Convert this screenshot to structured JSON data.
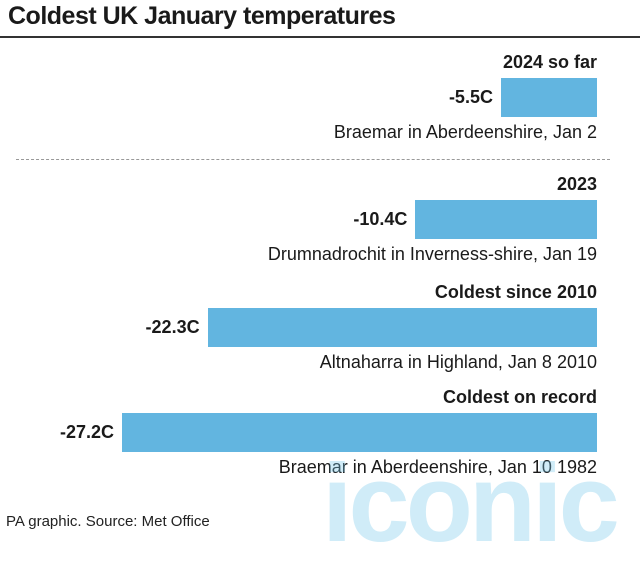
{
  "title": "Coldest UK January temperatures",
  "footer": "PA graphic. Source: Met Office",
  "watermark": "iconic",
  "bar_color": "#62b5e0",
  "chart_data": {
    "type": "bar",
    "orientation": "horizontal",
    "title": "Coldest UK January temperatures",
    "unit": "C",
    "xlim": [
      0,
      -27.2
    ],
    "items": [
      {
        "heading": "2024 so far",
        "value": -5.5,
        "label": "-5.5C",
        "location": "Braemar in Aberdeenshire, Jan 2"
      },
      {
        "heading": "2023",
        "value": -10.4,
        "label": "-10.4C",
        "location": "Drumnadrochit in Inverness-shire, Jan 19"
      },
      {
        "heading": "Coldest since 2010",
        "value": -22.3,
        "label": "-22.3C",
        "location": "Altnaharra in Highland, Jan 8 2010"
      },
      {
        "heading": "Coldest on record",
        "value": -27.2,
        "label": "-27.2C",
        "location": "Braemar in Aberdeenshire, Jan 10 1982"
      }
    ]
  }
}
